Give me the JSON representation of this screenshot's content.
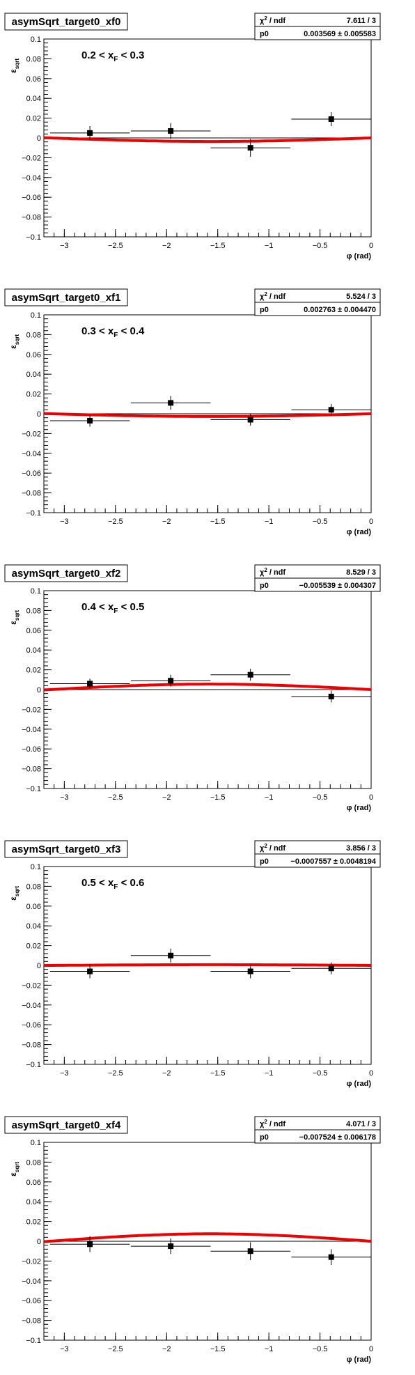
{
  "x_axis_label": "φ (rad)",
  "y_axis_label": "ε",
  "y_axis_label_sub": "sqrt",
  "stats_label_chi2": "χ",
  "stats_label_chi2_sup": "2",
  "stats_label_ndf": " / ndf",
  "stats_label_p0": "p0",
  "chart_data": [
    {
      "type": "scatter",
      "title": "asymSqrt_target0_xf0",
      "annotation": {
        "prefix": "0.2 < x",
        "sub": "F",
        "suffix": " < 0.3"
      },
      "stats": {
        "chi2_ndf": "7.611 / 3",
        "p0": "0.003569 ± 0.005583"
      },
      "xlabel": "φ (rad)",
      "ylabel": "ε_sqrt",
      "xlim": [
        -3.2,
        0
      ],
      "ylim": [
        -0.1,
        0.1
      ],
      "x_ticks": [
        -3,
        -2.5,
        -2,
        -1.5,
        -1,
        -0.5,
        0
      ],
      "y_ticks": [
        0.1,
        0.08,
        0.06,
        0.04,
        0.02,
        0,
        -0.02,
        -0.04,
        -0.06,
        -0.08,
        -0.1
      ],
      "points": [
        {
          "x": -2.75,
          "y": 0.005,
          "xerr": 0.39,
          "yerr": 0.007
        },
        {
          "x": -1.96,
          "y": 0.007,
          "xerr": 0.39,
          "yerr": 0.008
        },
        {
          "x": -1.18,
          "y": -0.01,
          "xerr": 0.39,
          "yerr": 0.009
        },
        {
          "x": -0.39,
          "y": 0.019,
          "xerr": 0.39,
          "yerr": 0.007
        }
      ],
      "fit": {
        "p0": 0.003569
      }
    },
    {
      "type": "scatter",
      "title": "asymSqrt_target0_xf1",
      "annotation": {
        "prefix": "0.3 < x",
        "sub": "F",
        "suffix": " < 0.4"
      },
      "stats": {
        "chi2_ndf": "5.524 / 3",
        "p0": "0.002763 ± 0.004470"
      },
      "xlabel": "φ (rad)",
      "ylabel": "ε_sqrt",
      "xlim": [
        -3.2,
        0
      ],
      "ylim": [
        -0.1,
        0.1
      ],
      "x_ticks": [
        -3,
        -2.5,
        -2,
        -1.5,
        -1,
        -0.5,
        0
      ],
      "y_ticks": [
        0.1,
        0.08,
        0.06,
        0.04,
        0.02,
        0,
        -0.02,
        -0.04,
        -0.06,
        -0.08,
        -0.1
      ],
      "points": [
        {
          "x": -2.75,
          "y": -0.007,
          "xerr": 0.39,
          "yerr": 0.006
        },
        {
          "x": -1.96,
          "y": 0.011,
          "xerr": 0.39,
          "yerr": 0.007
        },
        {
          "x": -1.18,
          "y": -0.006,
          "xerr": 0.39,
          "yerr": 0.006
        },
        {
          "x": -0.39,
          "y": 0.004,
          "xerr": 0.39,
          "yerr": 0.006
        }
      ],
      "fit": {
        "p0": 0.002763
      }
    },
    {
      "type": "scatter",
      "title": "asymSqrt_target0_xf2",
      "annotation": {
        "prefix": "0.4 < x",
        "sub": "F",
        "suffix": " < 0.5"
      },
      "stats": {
        "chi2_ndf": "8.529 / 3",
        "p0": "−0.005539 ± 0.004307"
      },
      "xlabel": "φ (rad)",
      "ylabel": "ε_sqrt",
      "xlim": [
        -3.2,
        0
      ],
      "ylim": [
        -0.1,
        0.1
      ],
      "x_ticks": [
        -3,
        -2.5,
        -2,
        -1.5,
        -1,
        -0.5,
        0
      ],
      "y_ticks": [
        0.1,
        0.08,
        0.06,
        0.04,
        0.02,
        0,
        -0.02,
        -0.04,
        -0.06,
        -0.08,
        -0.1
      ],
      "points": [
        {
          "x": -2.75,
          "y": 0.006,
          "xerr": 0.39,
          "yerr": 0.005
        },
        {
          "x": -1.96,
          "y": 0.009,
          "xerr": 0.39,
          "yerr": 0.006
        },
        {
          "x": -1.18,
          "y": 0.015,
          "xerr": 0.39,
          "yerr": 0.006
        },
        {
          "x": -0.39,
          "y": -0.007,
          "xerr": 0.39,
          "yerr": 0.006
        }
      ],
      "fit": {
        "p0": -0.005539
      }
    },
    {
      "type": "scatter",
      "title": "asymSqrt_target0_xf3",
      "annotation": {
        "prefix": "0.5 < x",
        "sub": "F",
        "suffix": " < 0.6"
      },
      "stats": {
        "chi2_ndf": "3.856 / 3",
        "p0": "−0.0007557 ± 0.0048194"
      },
      "xlabel": "φ (rad)",
      "ylabel": "ε_sqrt",
      "xlim": [
        -3.2,
        0
      ],
      "ylim": [
        -0.1,
        0.1
      ],
      "x_ticks": [
        -3,
        -2.5,
        -2,
        -1.5,
        -1,
        -0.5,
        0
      ],
      "y_ticks": [
        0.1,
        0.08,
        0.06,
        0.04,
        0.02,
        0,
        -0.02,
        -0.04,
        -0.06,
        -0.08,
        -0.1
      ],
      "points": [
        {
          "x": -2.75,
          "y": -0.006,
          "xerr": 0.39,
          "yerr": 0.007
        },
        {
          "x": -1.96,
          "y": 0.01,
          "xerr": 0.39,
          "yerr": 0.007
        },
        {
          "x": -1.18,
          "y": -0.006,
          "xerr": 0.39,
          "yerr": 0.007
        },
        {
          "x": -0.39,
          "y": -0.003,
          "xerr": 0.39,
          "yerr": 0.006
        }
      ],
      "fit": {
        "p0": -0.0007557
      }
    },
    {
      "type": "scatter",
      "title": "asymSqrt_target0_xf4",
      "annotation": null,
      "stats": {
        "chi2_ndf": "4.071 / 3",
        "p0": "−0.007524 ± 0.006178"
      },
      "xlabel": "φ (rad)",
      "ylabel": "ε_sqrt",
      "xlim": [
        -3.2,
        0
      ],
      "ylim": [
        -0.1,
        0.1
      ],
      "x_ticks": [
        -3,
        -2.5,
        -2,
        -1.5,
        -1,
        -0.5,
        0
      ],
      "y_ticks": [
        0.1,
        0.08,
        0.06,
        0.04,
        0.02,
        0,
        -0.02,
        -0.04,
        -0.06,
        -0.08,
        -0.1
      ],
      "points": [
        {
          "x": -2.75,
          "y": -0.003,
          "xerr": 0.39,
          "yerr": 0.008
        },
        {
          "x": -1.96,
          "y": -0.005,
          "xerr": 0.39,
          "yerr": 0.008
        },
        {
          "x": -1.18,
          "y": -0.01,
          "xerr": 0.39,
          "yerr": 0.009
        },
        {
          "x": -0.39,
          "y": -0.016,
          "xerr": 0.39,
          "yerr": 0.008
        }
      ],
      "fit": {
        "p0": -0.007524
      }
    }
  ]
}
